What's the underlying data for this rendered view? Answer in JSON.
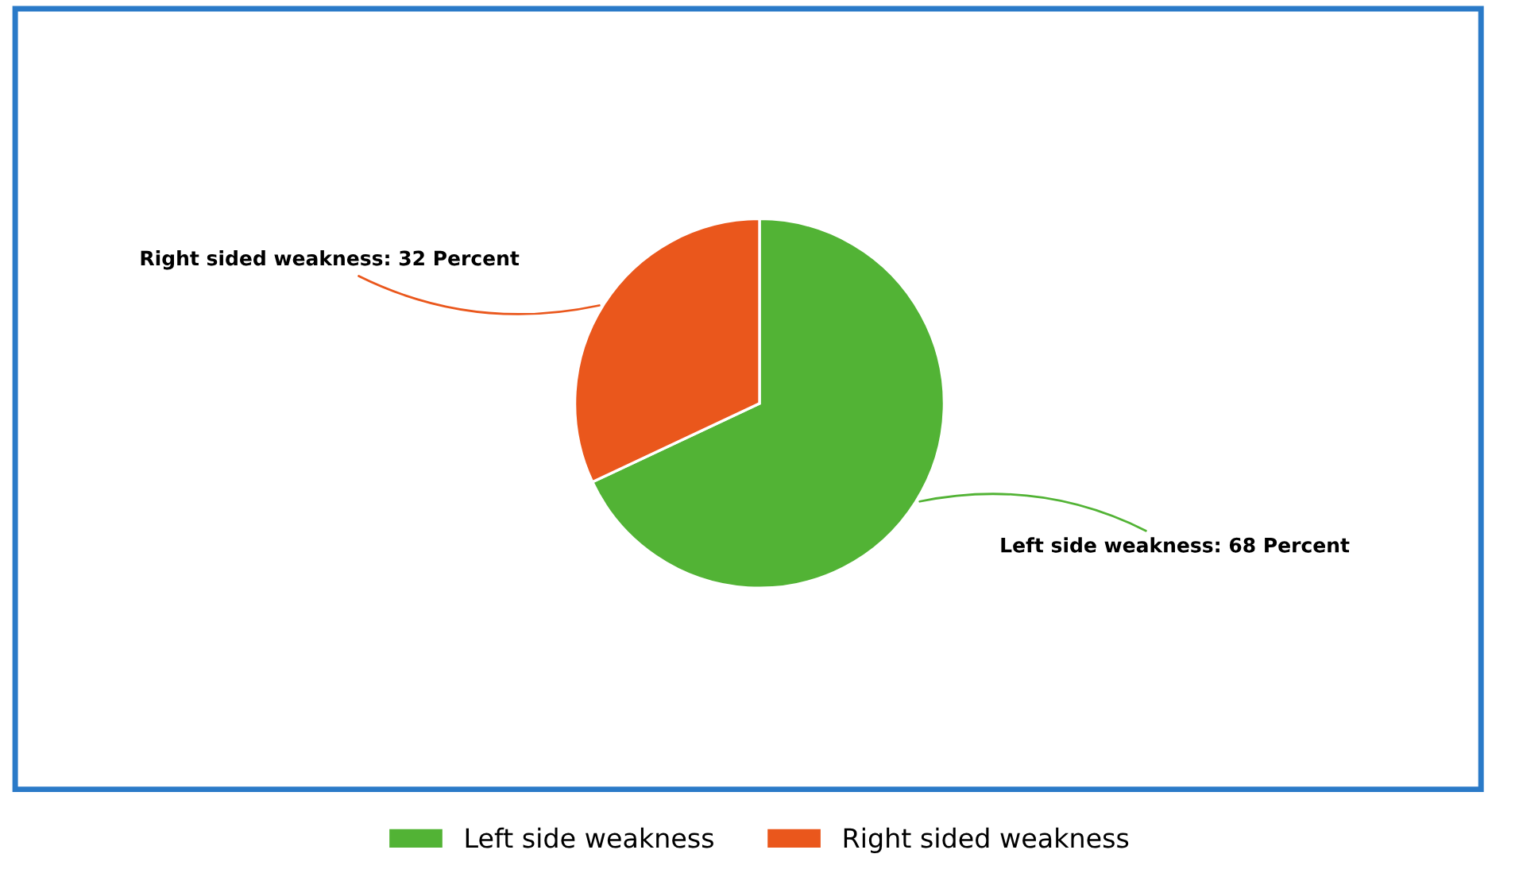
{
  "chart_data": {
    "type": "pie",
    "categories": [
      "Left side weakness",
      "Right sided weakness"
    ],
    "values": [
      68,
      32
    ],
    "colors": [
      "#52b335",
      "#ea571c"
    ],
    "value_labels": [
      "Left side weakness: 68 Percent",
      "Right sided weakness: 32 Percent"
    ],
    "legend": "bottom"
  }
}
